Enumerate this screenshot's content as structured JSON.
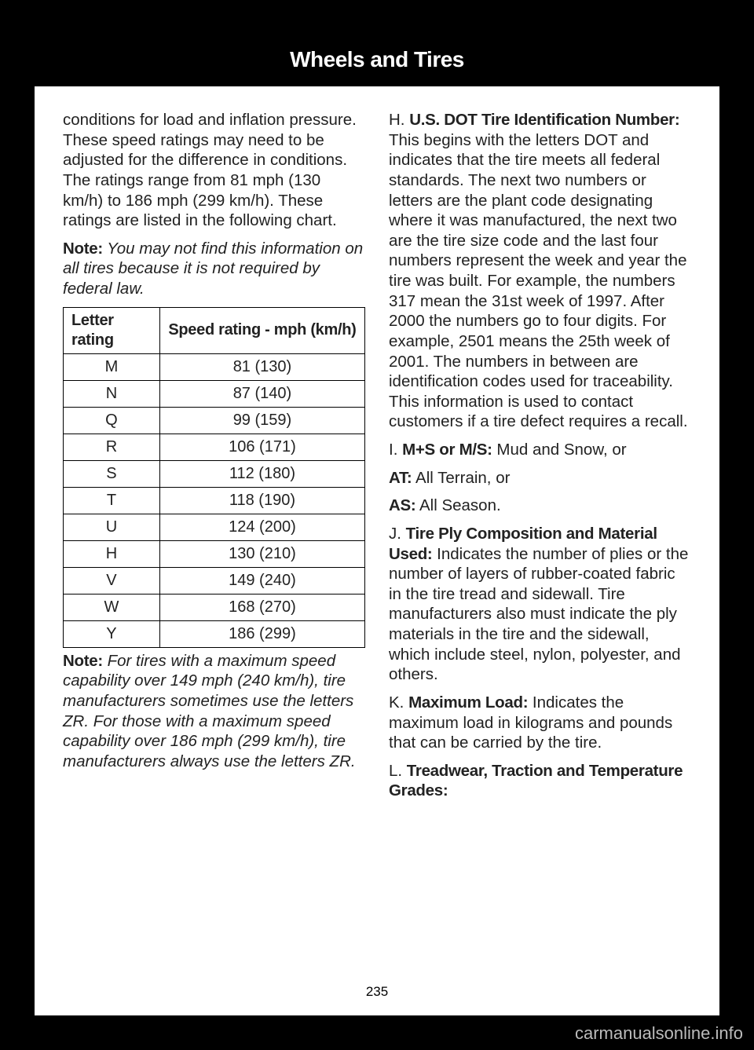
{
  "header": "Wheels and Tires",
  "page_number": "235",
  "watermark": "carmanualsonline.info",
  "left": {
    "p1": "conditions for load and inflation pressure. These speed ratings may need to be adjusted for the difference in conditions. The ratings range from 81 mph (130 km/h) to 186 mph (299 km/h). These ratings are listed in the following chart.",
    "note1_label": "Note:",
    "note1_text": " You may not find this information on all tires because it is not required by federal law.",
    "table": {
      "col1": "Letter rating",
      "col2": "Speed rating - mph (km/h)",
      "rows": [
        [
          "M",
          "81 (130)"
        ],
        [
          "N",
          "87 (140)"
        ],
        [
          "Q",
          "99 (159)"
        ],
        [
          "R",
          "106 (171)"
        ],
        [
          "S",
          "112 (180)"
        ],
        [
          "T",
          "118 (190)"
        ],
        [
          "U",
          "124 (200)"
        ],
        [
          "H",
          "130 (210)"
        ],
        [
          "V",
          "149 (240)"
        ],
        [
          "W",
          "168 (270)"
        ],
        [
          "Y",
          "186 (299)"
        ]
      ]
    },
    "note2_label": "Note:",
    "note2_text": " For tires with a maximum speed capability over 149 mph (240 km/h), tire manufacturers sometimes use the letters ZR. For those with a maximum speed capability over 186 mph (299 km/h), tire manufacturers always use the letters ZR."
  },
  "right": {
    "h_prefix": "H. ",
    "h_bold": "U.S. DOT Tire Identification Number:",
    "h_text": " This begins with the letters DOT and indicates that the tire meets all federal standards. The next two numbers or letters are the plant code designating where it was manufactured, the next two are the tire size code and the last four numbers represent the week and year the tire was built. For example, the numbers 317 mean the 31st week of 1997. After 2000 the numbers go to four digits. For example, 2501 means the 25th week of 2001. The numbers in between are identification codes used for traceability. This information is used to contact customers if a tire defect requires a recall.",
    "i_prefix": "I. ",
    "i_bold": "M+S or M/S:",
    "i_text": " Mud and Snow, or",
    "at_bold": "AT:",
    "at_text": " All Terrain, or",
    "as_bold": "AS:",
    "as_text": " All Season.",
    "j_prefix": "J. ",
    "j_bold": "Tire Ply Composition and Material Used:",
    "j_text": " Indicates the number of plies or the number of layers of rubber-coated fabric in the tire tread and sidewall. Tire manufacturers also must indicate the ply materials in the tire and the sidewall, which include steel, nylon, polyester, and others.",
    "k_prefix": "K. ",
    "k_bold": "Maximum Load:",
    "k_text": " Indicates the maximum load in kilograms and pounds that can be carried by the tire.",
    "l_prefix": "L. ",
    "l_bold": "Treadwear, Traction and Temperature Grades:"
  }
}
